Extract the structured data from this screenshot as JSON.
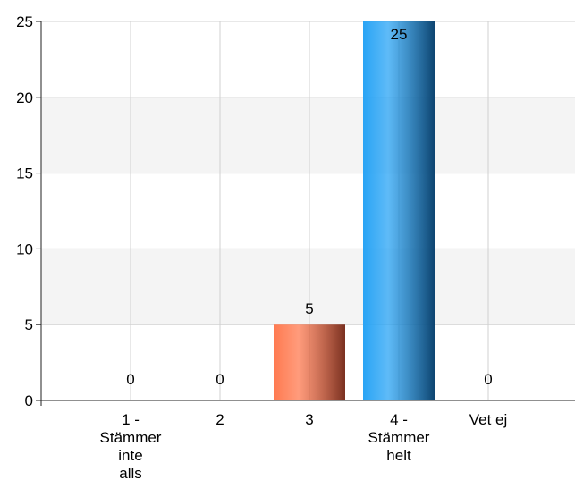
{
  "chart_data": {
    "type": "bar",
    "categories": [
      [
        "1 -",
        "Stämmer",
        "inte",
        "alls"
      ],
      [
        "2"
      ],
      [
        "3"
      ],
      [
        "4 -",
        "Stämmer",
        "helt"
      ],
      [
        "Vet ej"
      ]
    ],
    "values": [
      0,
      0,
      5,
      25,
      0
    ],
    "data_labels": [
      "0",
      "0",
      "5",
      "25",
      "0"
    ],
    "ylim": [
      0,
      25
    ],
    "yticks": [
      0,
      5,
      10,
      15,
      20,
      25
    ],
    "ytick_labels": [
      "0",
      "5",
      "10",
      "15",
      "20",
      "25"
    ],
    "grid": true,
    "bar_colors": [
      {
        "light": "#1a8fe8",
        "dark": "#1a4d80"
      },
      {
        "light": "#1a8fe8",
        "dark": "#1a4d80"
      },
      {
        "light": "#ff7a50",
        "dark": "#7a3020"
      },
      {
        "light": "#29a4f5",
        "dark": "#0d4470"
      },
      {
        "light": "#1a8fe8",
        "dark": "#1a4d80"
      }
    ]
  }
}
